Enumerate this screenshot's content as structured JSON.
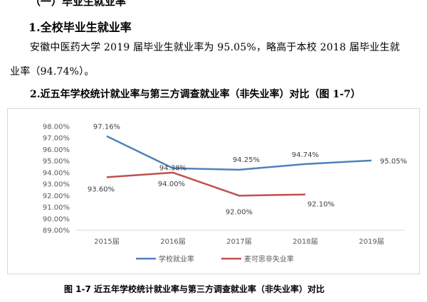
{
  "doc": {
    "heading_cut": "（一）毕业生就业率",
    "section_title": "1.全校毕业生就业率",
    "para_line1": "安徽中医药大学 2019 届毕业生就业率为 95.05%，略高于本校 2018 届毕业生就",
    "para_line2": "业率（94.74%）。",
    "subsection_title": "2.近五年学校统计就业率与第三方调查就业率（非失业率）对比（图 1-7）",
    "caption": "图 1-7  近五年学校统计就业率与第三方调查就业率（非失业率）对比"
  },
  "chart_data": {
    "type": "line",
    "title": "",
    "xlabel": "",
    "ylabel": "",
    "categories": [
      "2015届",
      "2016届",
      "2017届",
      "2018届",
      "2019届"
    ],
    "ylim": [
      89.0,
      98.0
    ],
    "yticks": [
      "89.00%",
      "90.00%",
      "91.00%",
      "92.00%",
      "93.00%",
      "94.00%",
      "95.00%",
      "96.00%",
      "97.00%",
      "98.00%"
    ],
    "grid": false,
    "legend": "bottom",
    "series": [
      {
        "name": "学校就业率",
        "color": "#4f81bd",
        "values": [
          97.16,
          94.38,
          94.25,
          94.74,
          95.05
        ],
        "labels": [
          "97.16%",
          "94.38%",
          "94.25%",
          "94.74%",
          "95.05%"
        ]
      },
      {
        "name": "麦可思非失业率",
        "color": "#c0504d",
        "values": [
          93.6,
          94.0,
          92.0,
          92.1,
          null
        ],
        "labels": [
          "93.60%",
          "94.00%",
          "92.00%",
          "92.10%",
          null
        ]
      }
    ]
  }
}
